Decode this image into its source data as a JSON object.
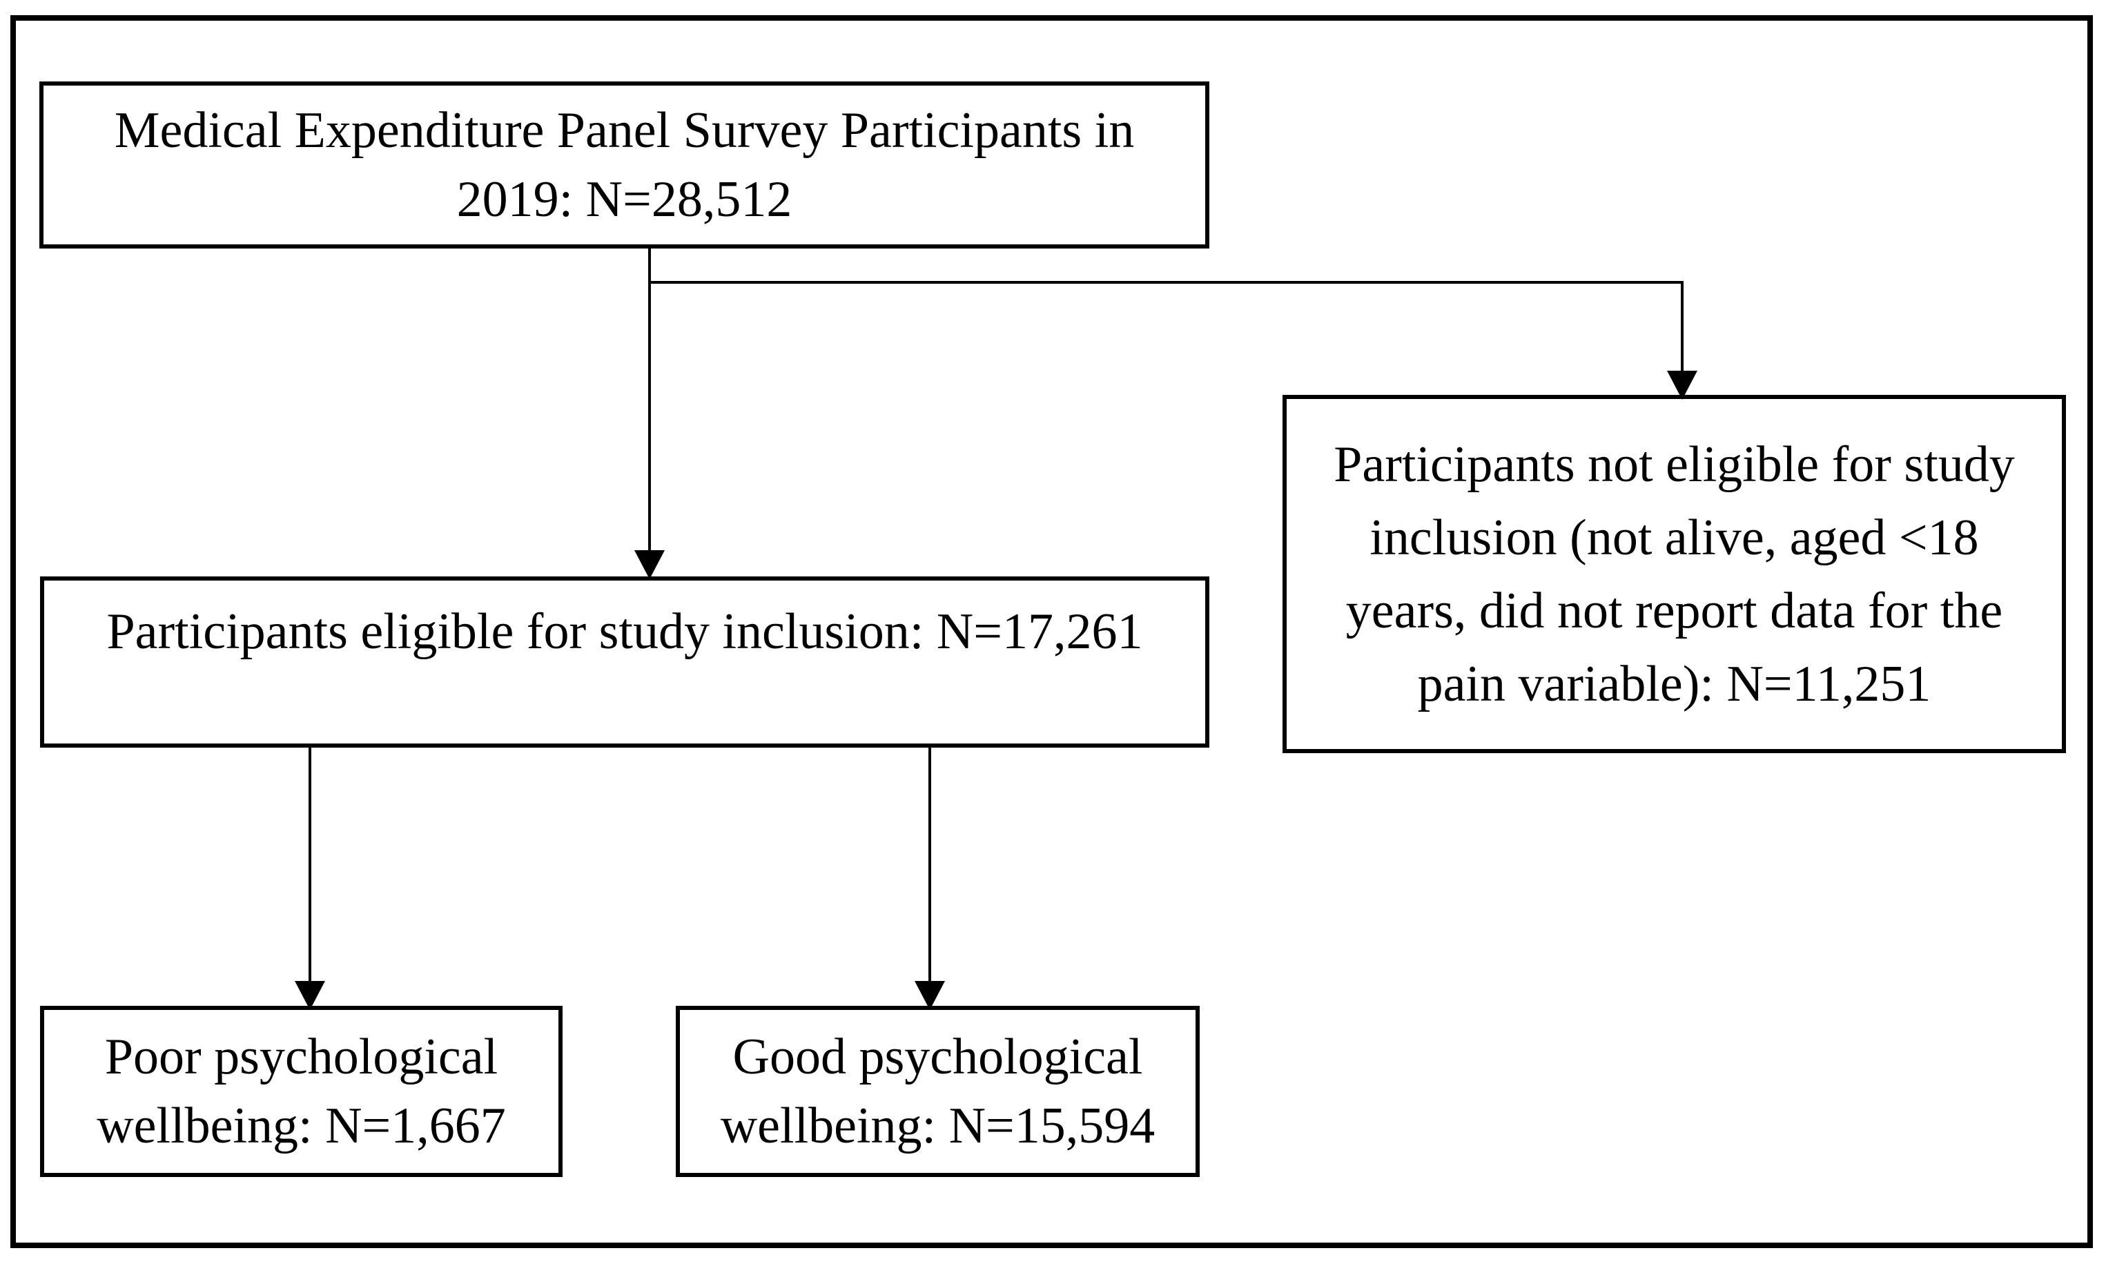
{
  "figure": {
    "type": "participant-flow-diagram",
    "boxes": {
      "survey": {
        "lines": [
          "Medical Expenditure Panel Survey Participants in",
          "2019: N=28,512"
        ],
        "n": "28,512"
      },
      "eligible": {
        "lines": [
          "Participants eligible for study inclusion: N=17,261"
        ],
        "n": "17,261"
      },
      "not_eligible": {
        "lines": [
          "Participants not eligible for study",
          "inclusion (not alive, aged <18",
          "years, did not report data for the",
          "pain variable): N=11,251"
        ],
        "n": "11,251"
      },
      "poor_wellbeing": {
        "lines": [
          "Poor psychological",
          "wellbeing: N=1,667"
        ],
        "n": "1,667"
      },
      "good_wellbeing": {
        "lines": [
          "Good psychological",
          "wellbeing: N=15,594"
        ],
        "n": "15,594"
      }
    },
    "colors": {
      "ink": "#000000",
      "paper": "#ffffff"
    }
  }
}
